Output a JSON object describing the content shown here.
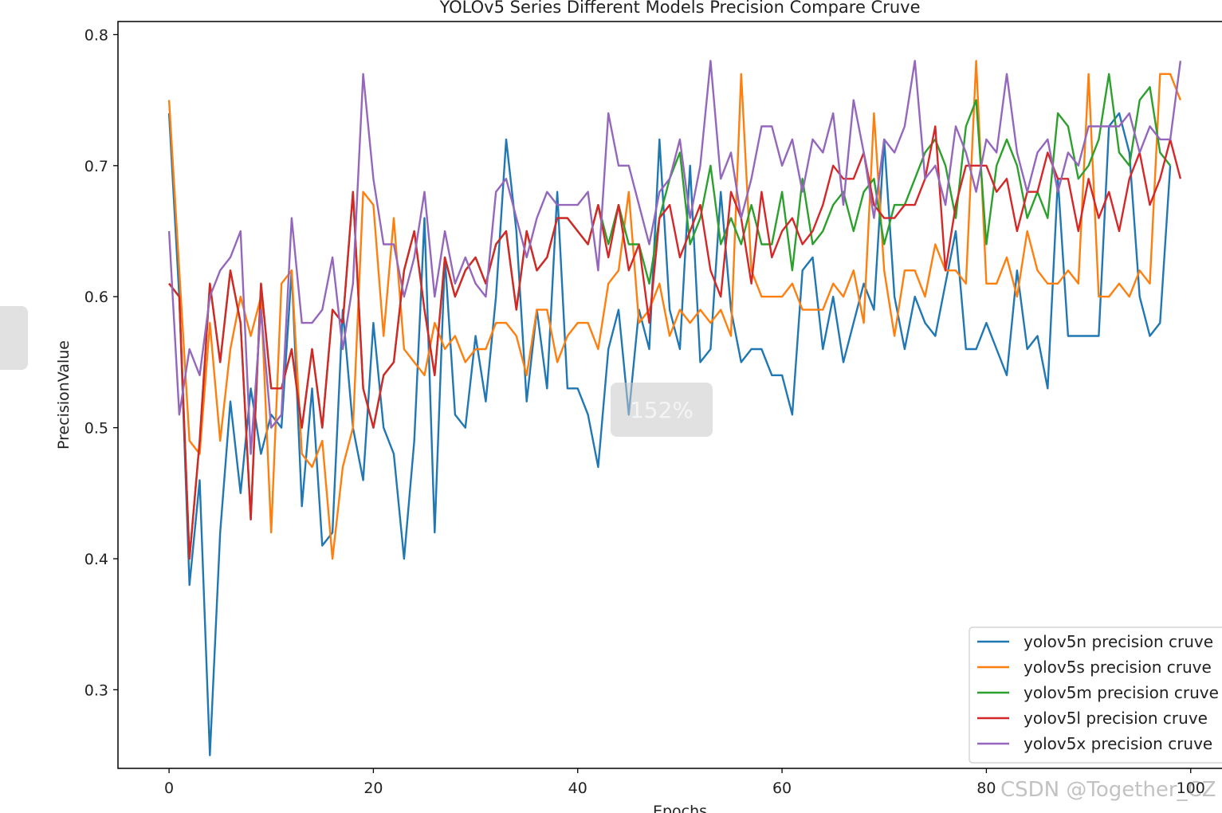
{
  "chart_data": {
    "type": "line",
    "title": "YOLOv5 Series Different Models Precision Compare Cruve",
    "xlabel": "Epochs",
    "ylabel": "PrecisionValue",
    "xlim": [
      -5,
      104
    ],
    "ylim": [
      0.24,
      0.81
    ],
    "xticks": [
      0,
      20,
      40,
      60,
      80,
      100
    ],
    "yticks": [
      0.3,
      0.4,
      0.5,
      0.6,
      0.7,
      0.8
    ],
    "xtick_labels": [
      "0",
      "20",
      "40",
      "60",
      "80",
      "100"
    ],
    "ytick_labels": [
      "0.3",
      "0.4",
      "0.5",
      "0.6",
      "0.7",
      "0.8"
    ],
    "grid": false,
    "legend_position": "lower-right",
    "series": [
      {
        "name": "yolov5n precision cruve",
        "color": "#1f77b4",
        "values": [
          0.74,
          0.6,
          0.38,
          0.46,
          0.25,
          0.42,
          0.52,
          0.45,
          0.53,
          0.48,
          0.51,
          0.5,
          0.62,
          0.44,
          0.53,
          0.41,
          0.42,
          0.59,
          0.5,
          0.46,
          0.58,
          0.5,
          0.48,
          0.4,
          0.49,
          0.66,
          0.42,
          0.63,
          0.51,
          0.5,
          0.57,
          0.52,
          0.6,
          0.72,
          0.65,
          0.52,
          0.59,
          0.53,
          0.68,
          0.53,
          0.53,
          0.51,
          0.47,
          0.56,
          0.59,
          0.51,
          0.59,
          0.56,
          0.72,
          0.59,
          0.56,
          0.7,
          0.55,
          0.56,
          0.68,
          0.59,
          0.55,
          0.56,
          0.56,
          0.54,
          0.54,
          0.51,
          0.62,
          0.63,
          0.56,
          0.6,
          0.55,
          0.58,
          0.61,
          0.59,
          0.72,
          0.6,
          0.56,
          0.6,
          0.58,
          0.57,
          0.61,
          0.65,
          0.56,
          0.56,
          0.58,
          0.56,
          0.54,
          0.62,
          0.56,
          0.57,
          0.53,
          0.69,
          0.57,
          0.57,
          0.57,
          0.57,
          0.73,
          0.74,
          0.71,
          0.6,
          0.57,
          0.58,
          0.7
        ]
      },
      {
        "name": "yolov5s precision cruve",
        "color": "#ff7f0e",
        "values": [
          0.75,
          0.62,
          0.49,
          0.48,
          0.58,
          0.49,
          0.56,
          0.6,
          0.57,
          0.6,
          0.42,
          0.61,
          0.62,
          0.48,
          0.47,
          0.49,
          0.4,
          0.47,
          0.5,
          0.68,
          0.67,
          0.57,
          0.66,
          0.56,
          0.55,
          0.54,
          0.58,
          0.56,
          0.57,
          0.55,
          0.56,
          0.56,
          0.58,
          0.58,
          0.57,
          0.54,
          0.59,
          0.59,
          0.55,
          0.57,
          0.58,
          0.58,
          0.56,
          0.61,
          0.62,
          0.68,
          0.58,
          0.59,
          0.61,
          0.57,
          0.59,
          0.58,
          0.59,
          0.58,
          0.59,
          0.57,
          0.77,
          0.62,
          0.6,
          0.6,
          0.6,
          0.61,
          0.59,
          0.59,
          0.59,
          0.61,
          0.6,
          0.62,
          0.58,
          0.74,
          0.62,
          0.57,
          0.62,
          0.62,
          0.6,
          0.64,
          0.62,
          0.62,
          0.61,
          0.78,
          0.61,
          0.61,
          0.63,
          0.6,
          0.65,
          0.62,
          0.61,
          0.61,
          0.62,
          0.61,
          0.77,
          0.6,
          0.6,
          0.61,
          0.6,
          0.62,
          0.61,
          0.77,
          0.77,
          0.75
        ]
      },
      {
        "name": "yolov5m precision cruve",
        "color": "#2ca02c",
        "values": [
          0.61,
          0.6,
          0.4,
          0.49,
          0.61,
          0.55,
          0.62,
          0.58,
          0.43,
          0.61,
          0.53,
          0.53,
          0.56,
          0.5,
          0.56,
          0.5,
          0.59,
          0.58,
          0.68,
          0.53,
          0.5,
          0.54,
          0.55,
          0.62,
          0.65,
          0.59,
          0.54,
          0.63,
          0.6,
          0.62,
          0.63,
          0.61,
          0.64,
          0.65,
          0.59,
          0.65,
          0.62,
          0.63,
          0.66,
          0.66,
          0.65,
          0.64,
          0.67,
          0.64,
          0.67,
          0.64,
          0.64,
          0.61,
          0.66,
          0.69,
          0.71,
          0.64,
          0.66,
          0.7,
          0.64,
          0.66,
          0.64,
          0.67,
          0.64,
          0.64,
          0.68,
          0.62,
          0.69,
          0.64,
          0.65,
          0.67,
          0.68,
          0.65,
          0.68,
          0.69,
          0.64,
          0.67,
          0.67,
          0.69,
          0.71,
          0.72,
          0.7,
          0.66,
          0.73,
          0.75,
          0.64,
          0.7,
          0.72,
          0.7,
          0.66,
          0.68,
          0.66,
          0.74,
          0.73,
          0.69,
          0.7,
          0.72,
          0.77,
          0.71,
          0.7,
          0.75,
          0.76,
          0.71,
          0.7
        ]
      },
      {
        "name": "yolov5l precision cruve",
        "color": "#d62728",
        "values": [
          0.61,
          0.6,
          0.4,
          0.49,
          0.61,
          0.55,
          0.62,
          0.58,
          0.43,
          0.61,
          0.53,
          0.53,
          0.56,
          0.5,
          0.56,
          0.5,
          0.59,
          0.58,
          0.68,
          0.53,
          0.5,
          0.54,
          0.55,
          0.62,
          0.65,
          0.59,
          0.54,
          0.63,
          0.6,
          0.62,
          0.63,
          0.61,
          0.64,
          0.65,
          0.59,
          0.65,
          0.62,
          0.63,
          0.66,
          0.66,
          0.65,
          0.64,
          0.67,
          0.63,
          0.67,
          0.62,
          0.64,
          0.58,
          0.66,
          0.67,
          0.63,
          0.65,
          0.67,
          0.62,
          0.6,
          0.68,
          0.66,
          0.61,
          0.68,
          0.63,
          0.65,
          0.66,
          0.64,
          0.65,
          0.67,
          0.7,
          0.69,
          0.69,
          0.71,
          0.67,
          0.66,
          0.66,
          0.67,
          0.67,
          0.69,
          0.73,
          0.62,
          0.67,
          0.7,
          0.7,
          0.7,
          0.68,
          0.69,
          0.65,
          0.68,
          0.68,
          0.71,
          0.69,
          0.69,
          0.65,
          0.69,
          0.66,
          0.68,
          0.65,
          0.69,
          0.71,
          0.67,
          0.69,
          0.72,
          0.69
        ]
      },
      {
        "name": "yolov5x precision cruve",
        "color": "#9467bd",
        "values": [
          0.65,
          0.51,
          0.56,
          0.54,
          0.6,
          0.62,
          0.63,
          0.65,
          0.48,
          0.59,
          0.5,
          0.51,
          0.66,
          0.58,
          0.58,
          0.59,
          0.63,
          0.56,
          0.61,
          0.77,
          0.69,
          0.64,
          0.64,
          0.6,
          0.63,
          0.68,
          0.6,
          0.65,
          0.61,
          0.63,
          0.61,
          0.6,
          0.68,
          0.69,
          0.66,
          0.63,
          0.66,
          0.68,
          0.67,
          0.67,
          0.67,
          0.68,
          0.62,
          0.74,
          0.7,
          0.7,
          0.67,
          0.64,
          0.68,
          0.69,
          0.72,
          0.66,
          0.7,
          0.78,
          0.69,
          0.71,
          0.66,
          0.69,
          0.73,
          0.73,
          0.7,
          0.72,
          0.68,
          0.72,
          0.71,
          0.74,
          0.67,
          0.75,
          0.71,
          0.66,
          0.72,
          0.71,
          0.73,
          0.78,
          0.69,
          0.7,
          0.67,
          0.73,
          0.71,
          0.68,
          0.72,
          0.71,
          0.77,
          0.71,
          0.68,
          0.71,
          0.72,
          0.68,
          0.71,
          0.7,
          0.73,
          0.73,
          0.73,
          0.73,
          0.74,
          0.71,
          0.73,
          0.72,
          0.72,
          0.78
        ]
      }
    ]
  },
  "overlays": {
    "zoom_badge": "152%",
    "side_handle": ""
  },
  "watermark": "CSDN @Together_CZ"
}
